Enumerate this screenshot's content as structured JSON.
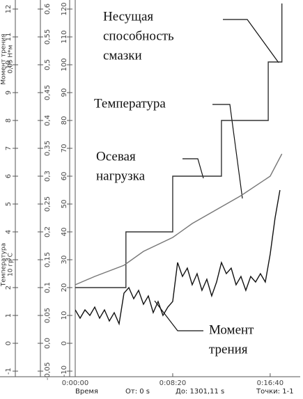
{
  "chart_data": {
    "type": "line",
    "y_label_top": [
      "Момент трения",
      "0,05 Н*м"
    ],
    "y_label_bottom": [
      "Температура",
      "10 гр С"
    ],
    "xlim": [
      0,
      1154
    ],
    "xticks": [
      {
        "value": 0,
        "label": "0:00:00"
      },
      {
        "value": 500,
        "label": "0:08:20"
      },
      {
        "value": 1000,
        "label": "0:16:40"
      }
    ],
    "ylim": [
      -12,
      122
    ],
    "yticks": [
      120,
      110,
      100,
      90,
      80,
      70,
      60,
      50,
      40,
      30,
      20,
      10,
      0,
      -10
    ],
    "yticks_torque": [
      {
        "value": 120,
        "label": "0,6"
      },
      {
        "value": 110,
        "label": "0,55"
      },
      {
        "value": 100,
        "label": "0,5"
      },
      {
        "value": 90,
        "label": "0,45"
      },
      {
        "value": 80,
        "label": "0,4"
      },
      {
        "value": 70,
        "label": "0,35"
      },
      {
        "value": 60,
        "label": "0,3"
      },
      {
        "value": 50,
        "label": "0,25"
      },
      {
        "value": 40,
        "label": "0,2"
      },
      {
        "value": 30,
        "label": "0,15"
      },
      {
        "value": 20,
        "label": "0,1"
      },
      {
        "value": 10,
        "label": "0,05"
      },
      {
        "value": 0,
        "label": "0,0"
      },
      {
        "value": -10,
        "label": "-0,05"
      }
    ],
    "yticks_temp": [
      {
        "value": 120,
        "label": "12"
      },
      {
        "value": 110,
        "label": "11"
      },
      {
        "value": 100,
        "label": "10"
      },
      {
        "value": 90,
        "label": "9"
      },
      {
        "value": 80,
        "label": "8"
      },
      {
        "value": 70,
        "label": "7"
      },
      {
        "value": 60,
        "label": "6"
      },
      {
        "value": 50,
        "label": "5"
      },
      {
        "value": 40,
        "label": "4"
      },
      {
        "value": 30,
        "label": "3"
      },
      {
        "value": 20,
        "label": "2"
      },
      {
        "value": 10,
        "label": "1"
      },
      {
        "value": 0,
        "label": "0"
      },
      {
        "value": -10,
        "label": "-1"
      }
    ],
    "series": [
      {
        "color": "#333333",
        "x": [
          0,
          260,
          260,
          500,
          500,
          750,
          750,
          990,
          990,
          1060,
          1060
        ],
        "values": [
          20,
          20,
          40,
          40,
          60,
          60,
          80,
          80,
          101,
          101,
          122
        ]
      },
      {
        "color": "#777777",
        "x": [
          0,
          100,
          250,
          350,
          500,
          600,
          750,
          850,
          1000,
          1060
        ],
        "values": [
          21,
          24,
          28,
          33,
          38,
          43,
          49,
          53,
          60,
          68
        ]
      },
      {
        "color": "#111111",
        "x": [
          0,
          25,
          50,
          75,
          100,
          125,
          150,
          175,
          200,
          225,
          250,
          275,
          300,
          325,
          350,
          375,
          400,
          425,
          450,
          475,
          500,
          525,
          550,
          575,
          600,
          625,
          650,
          675,
          700,
          725,
          750,
          775,
          800,
          825,
          850,
          875,
          900,
          925,
          950,
          975,
          1000,
          1025,
          1050
        ],
        "values": [
          12,
          9,
          12,
          10,
          13,
          9,
          12,
          8,
          11,
          7,
          18,
          20,
          16,
          19,
          14,
          17,
          11,
          15,
          10,
          13,
          15,
          29,
          24,
          27,
          21,
          25,
          19,
          23,
          17,
          22,
          29,
          25,
          27,
          21,
          24,
          19,
          24,
          22,
          25,
          22,
          32,
          45,
          55
        ]
      }
    ],
    "annotations": [
      {
        "lines": [
          "Несущая",
          "способность",
          "смазки"
        ]
      },
      {
        "lines": [
          "Температура"
        ]
      },
      {
        "lines": [
          "Осевая",
          "нагрузка"
        ]
      },
      {
        "lines": [
          "Момент",
          "трения"
        ]
      }
    ],
    "footer": {
      "x_name": "Время",
      "from": "От: 0 s",
      "to": "До: 1301,11 s",
      "points": "Точки: 1-1"
    }
  }
}
